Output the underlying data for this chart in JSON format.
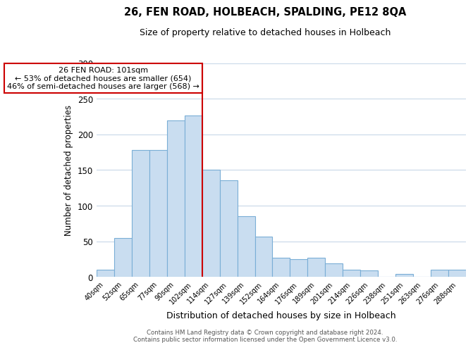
{
  "title": "26, FEN ROAD, HOLBEACH, SPALDING, PE12 8QA",
  "subtitle": "Size of property relative to detached houses in Holbeach",
  "xlabel": "Distribution of detached houses by size in Holbeach",
  "ylabel": "Number of detached properties",
  "bar_labels": [
    "40sqm",
    "52sqm",
    "65sqm",
    "77sqm",
    "90sqm",
    "102sqm",
    "114sqm",
    "127sqm",
    "139sqm",
    "152sqm",
    "164sqm",
    "176sqm",
    "189sqm",
    "201sqm",
    "214sqm",
    "226sqm",
    "238sqm",
    "251sqm",
    "263sqm",
    "276sqm",
    "288sqm"
  ],
  "bar_values": [
    10,
    55,
    178,
    178,
    220,
    226,
    150,
    136,
    85,
    57,
    27,
    25,
    27,
    19,
    10,
    9,
    0,
    4,
    0,
    10,
    10
  ],
  "bar_color": "#c9ddf0",
  "bar_edge_color": "#7aaed6",
  "highlight_bar_index": 5,
  "highlight_line_color": "#cc0000",
  "ylim": [
    0,
    300
  ],
  "yticks": [
    0,
    50,
    100,
    150,
    200,
    250,
    300
  ],
  "annotation_title": "26 FEN ROAD: 101sqm",
  "annotation_line1": "← 53% of detached houses are smaller (654)",
  "annotation_line2": "46% of semi-detached houses are larger (568) →",
  "annotation_box_color": "#ffffff",
  "annotation_box_edge_color": "#cc0000",
  "footer_line1": "Contains HM Land Registry data © Crown copyright and database right 2024.",
  "footer_line2": "Contains public sector information licensed under the Open Government Licence v3.0.",
  "background_color": "#ffffff",
  "grid_color": "#c8d8e8"
}
